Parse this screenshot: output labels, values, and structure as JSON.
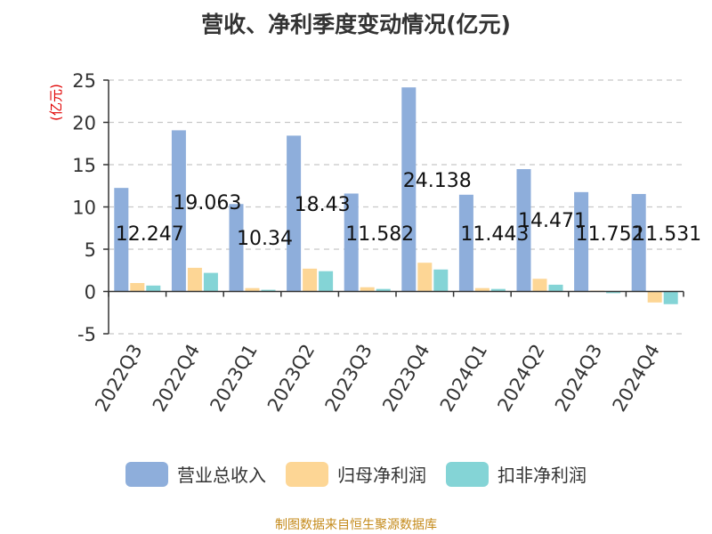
{
  "title": "营收、净利季度变动情况(亿元)",
  "source": "制图数据来自恒生聚源数据库",
  "chart_data": {
    "type": "bar",
    "title": "营收、净利季度变动情况(亿元)",
    "ylabel": "(亿元)",
    "ylim": [
      -5,
      25
    ],
    "yticks": [
      -5,
      0,
      5,
      10,
      15,
      20,
      25
    ],
    "grid": true,
    "legend_position": "bottom",
    "categories": [
      "2022Q3",
      "2022Q4",
      "2023Q1",
      "2023Q2",
      "2023Q3",
      "2023Q4",
      "2024Q1",
      "2024Q2",
      "2024Q3",
      "2024Q4"
    ],
    "series": [
      {
        "name": "营业总收入",
        "color": "#8eaedb",
        "values": [
          12.247,
          19.063,
          10.34,
          18.43,
          11.582,
          24.138,
          11.443,
          14.471,
          11.752,
          11.531
        ]
      },
      {
        "name": "归母净利润",
        "color": "#fdd695",
        "values": [
          1.0,
          2.8,
          0.4,
          2.7,
          0.5,
          3.4,
          0.4,
          1.5,
          0.1,
          -1.3
        ]
      },
      {
        "name": "扣非净利润",
        "color": "#84d4d6",
        "values": [
          0.7,
          2.2,
          0.2,
          2.4,
          0.3,
          2.6,
          0.3,
          0.8,
          -0.2,
          -1.5
        ]
      }
    ],
    "data_labels": [
      "12.247",
      "19.063",
      "10.34",
      "18.43",
      "11.582",
      "24.138",
      "11.443",
      "14.471",
      "11.752",
      "11.531"
    ]
  }
}
